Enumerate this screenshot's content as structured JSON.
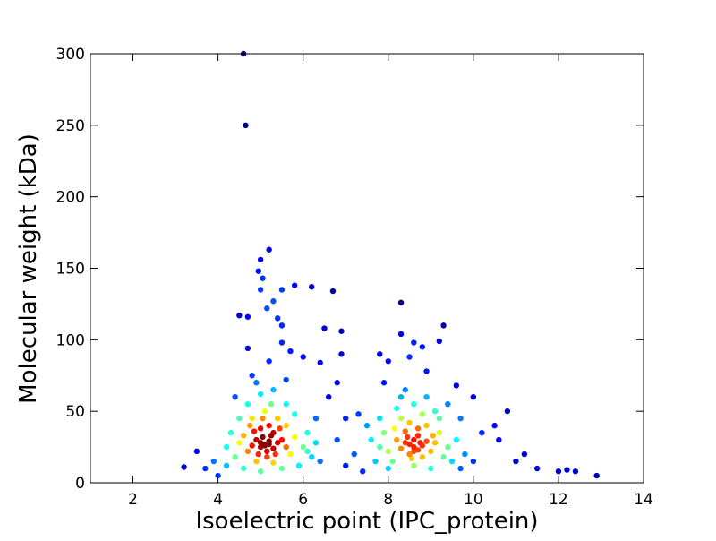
{
  "chart_data": {
    "type": "scatter",
    "xlabel": "Isoelectric point (IPC_protein)",
    "ylabel": "Molecular weight (kDa)",
    "xlim": [
      1,
      14
    ],
    "ylim": [
      0,
      300
    ],
    "xticks": [
      2,
      4,
      6,
      8,
      10,
      12,
      14
    ],
    "yticks": [
      0,
      50,
      100,
      150,
      200,
      250,
      300
    ],
    "colormap": "jet",
    "x": [
      4.6,
      4.65,
      5.2,
      5.0,
      4.95,
      5.05,
      5.0,
      5.5,
      5.8,
      6.2,
      6.7,
      5.3,
      5.15,
      4.5,
      4.7,
      5.4,
      5.5,
      6.5,
      6.9,
      8.3,
      9.3,
      9.2,
      8.3,
      8.6,
      8.8,
      5.5,
      4.7,
      5.7,
      6.0,
      6.4,
      6.9,
      7.8,
      8.0,
      8.5,
      8.9,
      9.6,
      10.0,
      10.8,
      10.5,
      11.2,
      11.5,
      12.0,
      12.2,
      12.4,
      12.9,
      3.2,
      3.5,
      3.7,
      3.9,
      11.0,
      10.6,
      7.0,
      7.3,
      7.5,
      6.8,
      7.2,
      7.0,
      7.4,
      6.6,
      6.3,
      4.4,
      4.8,
      5.2,
      9.7,
      10.2,
      4.2,
      4.0,
      6.8,
      7.9,
      8.3,
      9.4,
      5.1,
      5.0,
      5.2,
      4.9,
      5.3,
      5.05,
      5.15,
      4.95,
      5.25,
      5.0,
      5.1,
      5.2,
      4.8,
      5.4,
      5.3,
      4.7,
      5.5,
      5.6,
      4.6,
      5.0,
      5.2,
      4.9,
      5.3,
      5.7,
      4.5,
      5.8,
      6.0,
      4.4,
      5.4,
      4.8,
      5.1,
      5.6,
      6.1,
      6.2,
      4.3,
      4.6,
      5.5,
      5.9,
      5.0,
      4.7,
      5.6,
      6.3,
      4.2,
      5.8,
      5.15,
      5.35,
      4.85,
      5.45,
      5.05,
      4.75,
      5.25,
      5.0,
      5.3,
      4.9,
      5.6,
      6.1,
      6.4,
      4.5,
      8.6,
      8.5,
      8.7,
      8.4,
      8.8,
      8.6,
      8.5,
      8.9,
      8.3,
      8.7,
      8.6,
      9.0,
      8.2,
      8.8,
      8.4,
      9.1,
      8.0,
      9.2,
      8.9,
      8.5,
      8.1,
      9.3,
      7.9,
      9.4,
      8.6,
      8.0,
      9.0,
      7.8,
      9.6,
      8.3,
      8.8,
      9.5,
      7.7,
      9.8,
      8.6,
      9.1,
      8.2,
      9.7,
      7.6,
      10.0,
      8.9,
      8.4,
      9.2,
      7.8,
      8.7,
      8.45,
      8.75,
      8.55,
      9.05,
      8.15
    ],
    "values": [
      300,
      250,
      163,
      156,
      148,
      143,
      135,
      135,
      138,
      137,
      134,
      127,
      122,
      117,
      116,
      115,
      110,
      108,
      106,
      126,
      110,
      99,
      104,
      98,
      95,
      98,
      94,
      92,
      88,
      84,
      90,
      90,
      85,
      88,
      78,
      68,
      60,
      50,
      40,
      20,
      10,
      8,
      9,
      8,
      5,
      11,
      22,
      10,
      15,
      15,
      30,
      45,
      48,
      40,
      30,
      20,
      12,
      8,
      60,
      45,
      60,
      75,
      85,
      45,
      35,
      25,
      5,
      70,
      70,
      60,
      55,
      27,
      25,
      29,
      30,
      24,
      32,
      22,
      20,
      33,
      28,
      26,
      27,
      26,
      28,
      35,
      22,
      30,
      25,
      33,
      38,
      40,
      15,
      14,
      20,
      28,
      32,
      25,
      18,
      45,
      45,
      50,
      40,
      35,
      18,
      35,
      10,
      10,
      12,
      8,
      55,
      55,
      28,
      12,
      48,
      18,
      20,
      36,
      38,
      45,
      40,
      55,
      62,
      65,
      70,
      72,
      22,
      15,
      45,
      25,
      27,
      23,
      28,
      26,
      30,
      20,
      29,
      24,
      33,
      22,
      22,
      30,
      18,
      36,
      28,
      22,
      35,
      40,
      42,
      15,
      18,
      35,
      25,
      12,
      10,
      10,
      25,
      30,
      45,
      48,
      15,
      15,
      20,
      55,
      50,
      52,
      10,
      30,
      15,
      60,
      65,
      45,
      45,
      38,
      32,
      28,
      17,
      33,
      38
    ]
  }
}
